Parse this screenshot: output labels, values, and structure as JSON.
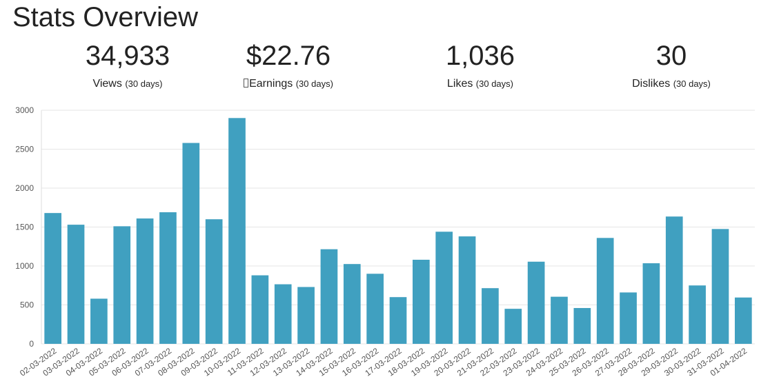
{
  "page": {
    "title": "Stats Overview"
  },
  "stats": [
    {
      "value": "34,933",
      "label": "Views",
      "period": "(30 days)"
    },
    {
      "value": "$22.76",
      "label": "Earnings",
      "period": "(30 days)"
    },
    {
      "value": "1,036",
      "label": "Likes",
      "period": "(30 days)"
    },
    {
      "value": "30",
      "label": "Dislikes",
      "period": "(30 days)"
    }
  ],
  "colors": {
    "bar": "#40a0c0",
    "grid": "#e6e6e6",
    "axis_text": "#555555"
  },
  "chart_data": {
    "type": "bar",
    "title": "",
    "xlabel": "",
    "ylabel": "",
    "ylim": [
      0,
      3000
    ],
    "yticks": [
      0,
      500,
      1000,
      1500,
      2000,
      2500,
      3000
    ],
    "grid": true,
    "categories": [
      "02-03-2022",
      "03-03-2022",
      "04-03-2022",
      "05-03-2022",
      "06-03-2022",
      "07-03-2022",
      "08-03-2022",
      "09-03-2022",
      "10-03-2022",
      "11-03-2022",
      "12-03-2022",
      "13-03-2022",
      "14-03-2022",
      "15-03-2022",
      "16-03-2022",
      "17-03-2022",
      "18-03-2022",
      "19-03-2022",
      "20-03-2022",
      "21-03-2022",
      "22-03-2022",
      "23-03-2022",
      "24-03-2022",
      "25-03-2022",
      "26-03-2022",
      "27-03-2022",
      "28-03-2022",
      "29-03-2022",
      "30-03-2022",
      "31-03-2022",
      "01-04-2022"
    ],
    "values": [
      1680,
      1530,
      580,
      1510,
      1610,
      1690,
      2580,
      1600,
      2900,
      880,
      765,
      730,
      1215,
      1025,
      900,
      600,
      1080,
      1440,
      1380,
      715,
      450,
      1055,
      605,
      460,
      1360,
      660,
      1035,
      1635,
      750,
      1475,
      595
    ]
  }
}
